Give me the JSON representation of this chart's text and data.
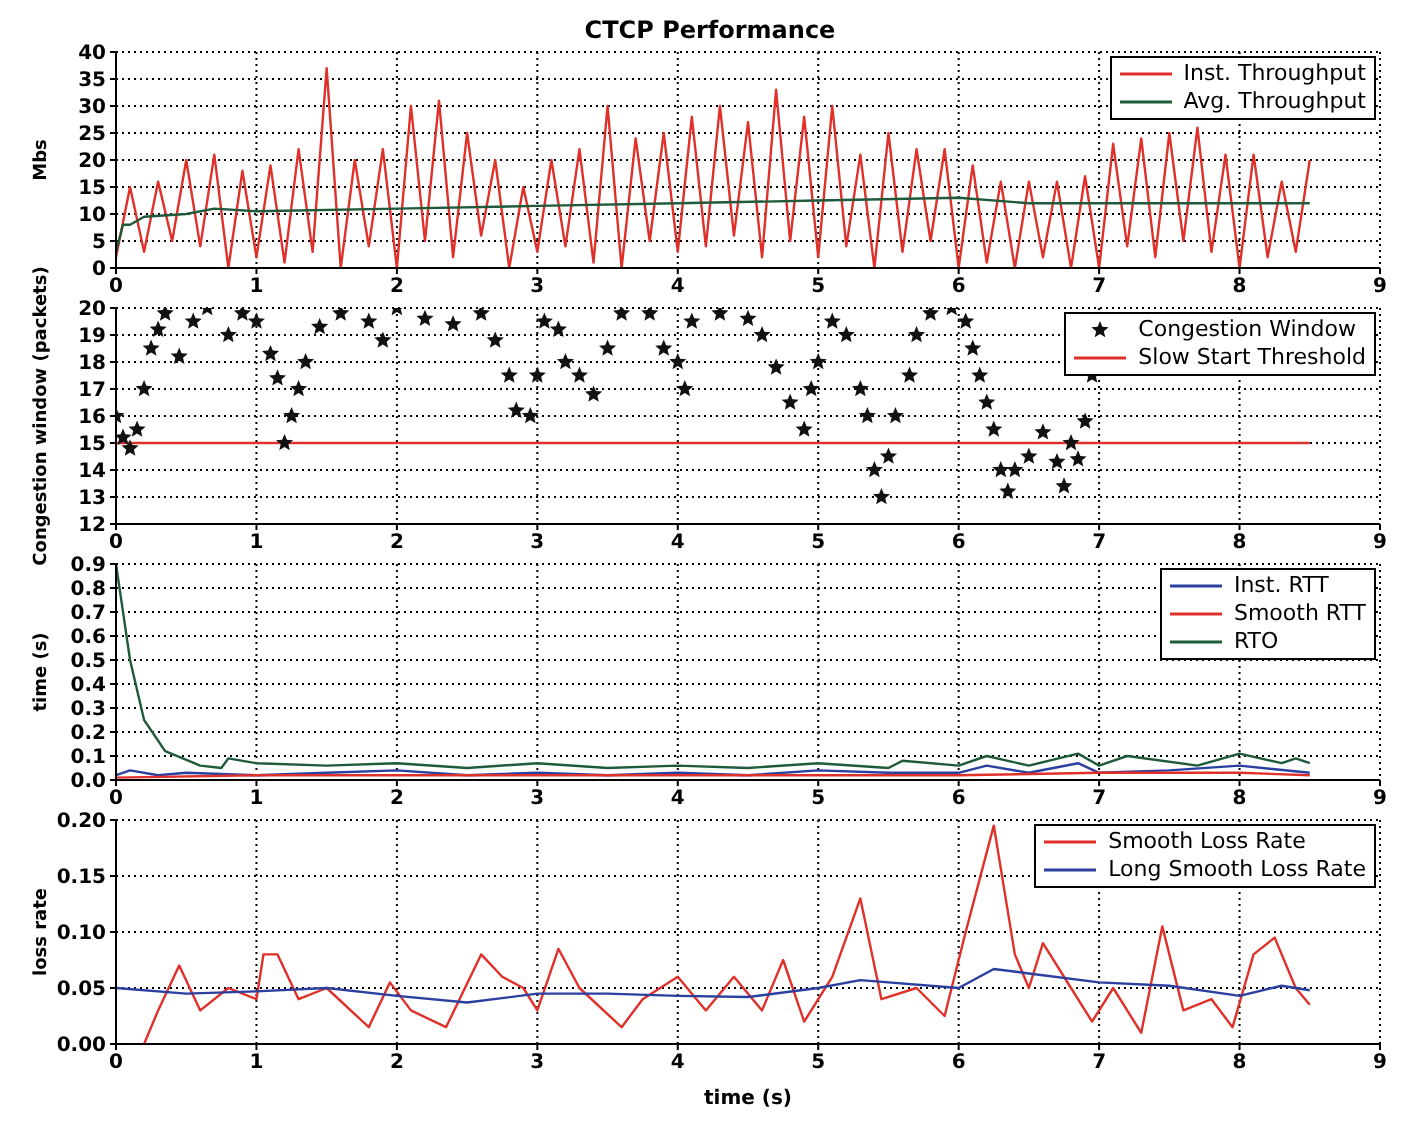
{
  "chart_data": [
    {
      "type": "line",
      "title": "CTCP Performance",
      "ylabel": "Mbs",
      "xlim": [
        0,
        9
      ],
      "xticks": [
        0,
        1,
        2,
        3,
        4,
        5,
        6,
        7,
        8,
        9
      ],
      "ylim": [
        0,
        40
      ],
      "yticks": [
        0,
        5,
        10,
        15,
        20,
        25,
        30,
        35,
        40
      ],
      "grid": true,
      "legend": "top right",
      "marker": "none",
      "line_style": "solid",
      "series": [
        {
          "name": "Inst. Throughput",
          "color": "#e0302a",
          "x": [
            0,
            0.1,
            0.2,
            0.3,
            0.4,
            0.5,
            0.6,
            0.7,
            0.8,
            0.9,
            1,
            1.1,
            1.2,
            1.3,
            1.4,
            1.5,
            1.6,
            1.7,
            1.8,
            1.9,
            2,
            2.1,
            2.2,
            2.3,
            2.4,
            2.5,
            2.6,
            2.7,
            2.8,
            2.9,
            3,
            3.1,
            3.2,
            3.3,
            3.4,
            3.5,
            3.6,
            3.7,
            3.8,
            3.9,
            4,
            4.1,
            4.2,
            4.3,
            4.4,
            4.5,
            4.6,
            4.7,
            4.8,
            4.9,
            5,
            5.1,
            5.2,
            5.3,
            5.4,
            5.5,
            5.6,
            5.7,
            5.8,
            5.9,
            6,
            6.1,
            6.2,
            6.3,
            6.4,
            6.5,
            6.6,
            6.7,
            6.8,
            6.9,
            7,
            7.1,
            7.2,
            7.3,
            7.4,
            7.5,
            7.6,
            7.7,
            7.8,
            7.9,
            8,
            8.1,
            8.2,
            8.3,
            8.4,
            8.5
          ],
          "values": [
            2,
            15,
            3,
            16,
            5,
            20,
            4,
            21,
            0,
            18,
            2,
            19,
            1,
            22,
            3,
            37,
            0,
            20,
            4,
            22,
            0,
            30,
            5,
            31,
            2,
            25,
            6,
            20,
            0,
            15,
            3,
            20,
            4,
            22,
            1,
            30,
            0,
            24,
            5,
            25,
            3,
            28,
            4,
            30,
            6,
            27,
            2,
            33,
            5,
            28,
            2,
            30,
            4,
            21,
            0,
            25,
            3,
            22,
            5,
            22,
            0,
            19,
            1,
            16,
            0,
            16,
            2,
            16,
            0,
            17,
            0,
            23,
            4,
            24,
            2,
            25,
            5,
            26,
            3,
            21,
            0,
            21,
            2,
            16,
            3,
            20
          ]
        },
        {
          "name": "Avg. Throughput",
          "color": "#1f5a3a",
          "x": [
            0,
            0.05,
            0.1,
            0.2,
            0.5,
            0.7,
            1,
            2,
            3,
            4,
            5,
            6,
            6.5,
            7,
            8,
            8.5
          ],
          "values": [
            3,
            8,
            8,
            9.5,
            10,
            11,
            10.5,
            11,
            11.5,
            12,
            12.5,
            13,
            12,
            12,
            12,
            12
          ]
        }
      ]
    },
    {
      "type": "scatter",
      "ylabel": "Congestion window (packets)",
      "xlim": [
        0,
        9
      ],
      "xticks": [
        0,
        1,
        2,
        3,
        4,
        5,
        6,
        7,
        8,
        9
      ],
      "ylim": [
        12,
        20
      ],
      "yticks": [
        12,
        13,
        14,
        15,
        16,
        17,
        18,
        19,
        20
      ],
      "grid": true,
      "legend": "top right",
      "series": [
        {
          "name": "Congestion Window",
          "color": "#111111",
          "marker": "star",
          "x": [
            0,
            0.05,
            0.1,
            0.15,
            0.2,
            0.25,
            0.3,
            0.35,
            0.45,
            0.55,
            0.65,
            0.8,
            0.9,
            1,
            1.1,
            1.15,
            1.2,
            1.25,
            1.3,
            1.35,
            1.45,
            1.6,
            1.8,
            1.9,
            2,
            2.2,
            2.4,
            2.6,
            2.7,
            2.8,
            2.85,
            2.95,
            3,
            3.05,
            3.15,
            3.2,
            3.3,
            3.4,
            3.5,
            3.6,
            3.8,
            3.9,
            4,
            4.05,
            4.1,
            4.3,
            4.5,
            4.6,
            4.7,
            4.8,
            4.9,
            4.95,
            5,
            5.1,
            5.2,
            5.3,
            5.35,
            5.4,
            5.45,
            5.5,
            5.55,
            5.65,
            5.7,
            5.8,
            5.95,
            6.05,
            6.1,
            6.15,
            6.2,
            6.25,
            6.3,
            6.35,
            6.4,
            6.5,
            6.6,
            6.7,
            6.75,
            6.8,
            6.85,
            6.9,
            6.95
          ],
          "values": [
            16,
            15.2,
            14.8,
            15.5,
            17,
            18.5,
            19.2,
            19.8,
            18.2,
            19.5,
            20,
            19,
            19.8,
            19.5,
            18.3,
            17.4,
            15,
            16,
            17,
            18,
            19.3,
            19.8,
            19.5,
            18.8,
            20,
            19.6,
            19.4,
            19.8,
            18.8,
            17.5,
            16.2,
            16,
            17.5,
            19.5,
            19.2,
            18,
            17.5,
            16.8,
            18.5,
            19.8,
            19.8,
            18.5,
            18,
            17,
            19.5,
            19.8,
            19.6,
            19,
            17.8,
            16.5,
            15.5,
            17,
            18,
            19.5,
            19,
            17,
            16,
            14,
            13,
            14.5,
            16,
            17.5,
            19,
            19.8,
            20,
            19.5,
            18.5,
            17.5,
            16.5,
            15.5,
            14,
            13.2,
            14,
            14.5,
            15.4,
            14.3,
            13.4,
            15,
            14.4,
            15.8,
            17.5
          ]
        },
        {
          "name": "Slow Start Threshold",
          "color": "#e0302a",
          "type": "line",
          "marker": "none",
          "x": [
            0,
            8.5
          ],
          "values": [
            15,
            15
          ]
        }
      ]
    },
    {
      "type": "line",
      "ylabel": "time (s)",
      "xlim": [
        0,
        9
      ],
      "xticks": [
        0,
        1,
        2,
        3,
        4,
        5,
        6,
        7,
        8,
        9
      ],
      "ylim": [
        0,
        0.9
      ],
      "yticks": [
        {
          "value": 0,
          "label": "0.0"
        },
        0.1,
        0.2,
        0.3,
        0.4,
        0.5,
        0.6,
        0.7,
        0.8,
        0.9
      ],
      "grid": true,
      "legend": "top right",
      "marker": "none",
      "series": [
        {
          "name": "Inst. RTT",
          "color": "#2a3f9f",
          "x": [
            0,
            0.1,
            0.3,
            0.5,
            1,
            1.5,
            2,
            2.5,
            3,
            3.5,
            4,
            4.5,
            5,
            5.5,
            6,
            6.2,
            6.5,
            6.85,
            7,
            7.5,
            8,
            8.5
          ],
          "values": [
            0.02,
            0.04,
            0.02,
            0.03,
            0.02,
            0.03,
            0.04,
            0.02,
            0.03,
            0.02,
            0.03,
            0.02,
            0.04,
            0.03,
            0.03,
            0.06,
            0.03,
            0.07,
            0.03,
            0.04,
            0.06,
            0.03
          ]
        },
        {
          "name": "Smooth RTT",
          "color": "#e0302a",
          "x": [
            0,
            1,
            2,
            3,
            4,
            5,
            6,
            7,
            8,
            8.5
          ],
          "values": [
            0.01,
            0.02,
            0.02,
            0.02,
            0.02,
            0.02,
            0.02,
            0.03,
            0.03,
            0.02
          ]
        },
        {
          "name": "RTO",
          "color": "#1f5a3a",
          "x": [
            0,
            0.1,
            0.2,
            0.35,
            0.6,
            0.75,
            0.8,
            1,
            1.5,
            2,
            2.5,
            3,
            3.5,
            4,
            4.5,
            5,
            5.5,
            5.6,
            6,
            6.2,
            6.5,
            6.85,
            7,
            7.2,
            7.7,
            8,
            8.3,
            8.4,
            8.5
          ],
          "values": [
            0.9,
            0.5,
            0.25,
            0.12,
            0.06,
            0.05,
            0.09,
            0.07,
            0.06,
            0.07,
            0.05,
            0.07,
            0.05,
            0.06,
            0.05,
            0.07,
            0.05,
            0.08,
            0.06,
            0.1,
            0.06,
            0.11,
            0.06,
            0.1,
            0.06,
            0.11,
            0.07,
            0.09,
            0.07
          ]
        }
      ]
    },
    {
      "type": "line",
      "ylabel": "loss rate",
      "xlabel": "time (s)",
      "xlim": [
        0,
        9
      ],
      "xticks": [
        0,
        1,
        2,
        3,
        4,
        5,
        6,
        7,
        8,
        9
      ],
      "ylim": [
        0,
        0.2
      ],
      "yticks": [
        {
          "value": 0,
          "label": "0.00"
        },
        {
          "value": 0.05,
          "label": "0.05"
        },
        {
          "value": 0.1,
          "label": "0.10"
        },
        {
          "value": 0.15,
          "label": "0.15"
        },
        {
          "value": 0.2,
          "label": "0.20"
        }
      ],
      "grid": true,
      "legend": "top right",
      "marker": "none",
      "series": [
        {
          "name": "Smooth Loss Rate",
          "color": "#e0302a",
          "x": [
            0.2,
            0.3,
            0.45,
            0.6,
            0.8,
            1,
            1.05,
            1.15,
            1.3,
            1.5,
            1.8,
            1.95,
            2.1,
            2.35,
            2.6,
            2.75,
            2.9,
            3,
            3.15,
            3.3,
            3.6,
            3.75,
            4,
            4.2,
            4.4,
            4.6,
            4.75,
            4.9,
            5.1,
            5.3,
            5.45,
            5.7,
            5.9,
            6.05,
            6.25,
            6.4,
            6.5,
            6.6,
            6.8,
            6.95,
            7.1,
            7.3,
            7.45,
            7.6,
            7.8,
            7.95,
            8.1,
            8.25,
            8.4,
            8.5
          ],
          "values": [
            0,
            0.03,
            0.07,
            0.03,
            0.05,
            0.04,
            0.08,
            0.08,
            0.04,
            0.05,
            0.015,
            0.055,
            0.03,
            0.015,
            0.08,
            0.06,
            0.05,
            0.03,
            0.085,
            0.05,
            0.015,
            0.04,
            0.06,
            0.03,
            0.06,
            0.03,
            0.075,
            0.02,
            0.06,
            0.13,
            0.04,
            0.05,
            0.025,
            0.1,
            0.195,
            0.08,
            0.05,
            0.09,
            0.05,
            0.02,
            0.05,
            0.01,
            0.105,
            0.03,
            0.04,
            0.015,
            0.08,
            0.095,
            0.05,
            0.035
          ]
        },
        {
          "name": "Long Smooth Loss Rate",
          "color": "#2a3f9f",
          "x": [
            0,
            0.5,
            1,
            1.5,
            2,
            2.5,
            3,
            3.5,
            4,
            4.5,
            5,
            5.3,
            6,
            6.25,
            6.5,
            7,
            7.5,
            8,
            8.3,
            8.5
          ],
          "values": [
            0.05,
            0.045,
            0.047,
            0.05,
            0.043,
            0.037,
            0.045,
            0.045,
            0.043,
            0.042,
            0.05,
            0.057,
            0.05,
            0.067,
            0.063,
            0.055,
            0.052,
            0.043,
            0.052,
            0.048
          ]
        }
      ]
    }
  ]
}
